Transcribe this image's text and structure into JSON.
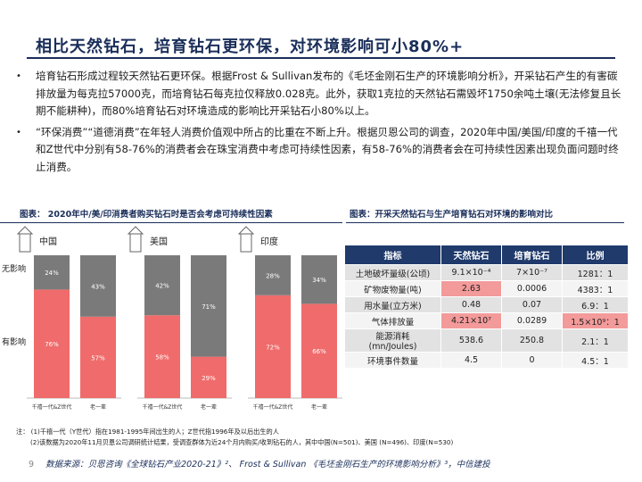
{
  "title": "相比天然钻石，培育钻石更环保，对环境影响可小80%+",
  "bullets": [
    "培育钻石形成过程较天然钻石更环保。根据Frost & Sullivan发布的《毛坯金刚石生产的环境影响分析》，开采钻石产生的有害碳排放量为每克拉57000克，而培育钻石每克拉仅释放0.028克。此外，获取1克拉的天然钻石需毁坏1750余吨土壤(无法修复且长期不能耕种)，而80%培育钻石对环境造成的影响比开采钻石小80%以上。",
    "“环保消费”“道德消费”在年轻人消费价值观中所占的比重在不断上升。根据贝恩公司的调查，2020年中国/美国/印度的千禧一代和Z世代中分别有58-76%的消费者会在珠宝消费中考虑可持续性因素，有58-76%的消费者会在可持续性因素出现负面问题时终止消费。"
  ],
  "bullet_symbol": "•",
  "caption_left": "图表： 2020年中/美/印消费者购买钻石时是否会考虑可持续性因素",
  "caption_right": "图表：开采天然钻石与生产培育钻石对环境的影响对比",
  "chart_data": {
    "type": "bar",
    "stacked": true,
    "groups": [
      "中国",
      "美国",
      "印度"
    ],
    "categories": [
      "千禧一代&Z世代",
      "老一辈"
    ],
    "row_labels": [
      "无影响",
      "有影响"
    ],
    "series": [
      {
        "name": "有影响",
        "color": "#f06b6b",
        "values": [
          [
            76,
            57
          ],
          [
            58,
            29
          ],
          [
            72,
            66
          ]
        ]
      },
      {
        "name": "无影响",
        "color": "#7a7a7a",
        "values": [
          [
            24,
            43
          ],
          [
            42,
            71
          ],
          [
            28,
            34
          ]
        ]
      }
    ],
    "ylim": [
      0,
      100
    ]
  },
  "table": {
    "headers": [
      "指标",
      "天然钻石",
      "培育钻石",
      "比例"
    ],
    "rows": [
      [
        "土地破坏量级(公顷)",
        "9.1×10⁻⁴",
        "7×10⁻⁷",
        "1281：1"
      ],
      [
        "矿物废物量(吨)",
        "2.63",
        "0.0006",
        "4383：1"
      ],
      [
        "用水量(立方米)",
        "0.48",
        "0.07",
        "6.9：1"
      ],
      [
        "气体排放量",
        "4.21×10⁷",
        "0.0289",
        "1.5×10⁹：1"
      ],
      [
        "能源消耗\n(mn/Joules)",
        "538.6",
        "250.8",
        "2.1：1"
      ],
      [
        "环境事件数量",
        "4.5",
        "0",
        "4.5：1"
      ]
    ]
  },
  "notes": [
    "注： (1)千禧一代（Y世代）指在1981-1995年间出生的人；Z世代指1996年及以后出生的人",
    "(2)该数据为2020年11月贝恩公司调研统计结果，受调查群体为近24个月内购买/收到钻石的人，其中中国(N=501)、美国 (N=496)、印度(N=530)"
  ],
  "footer": {
    "page": "9",
    "source": "数据来源：贝恩咨询《全球钻石产业2020-21》²、 Frost & Sullivan 《毛坯金刚石生产的环境影响分析》³，中信建投"
  }
}
